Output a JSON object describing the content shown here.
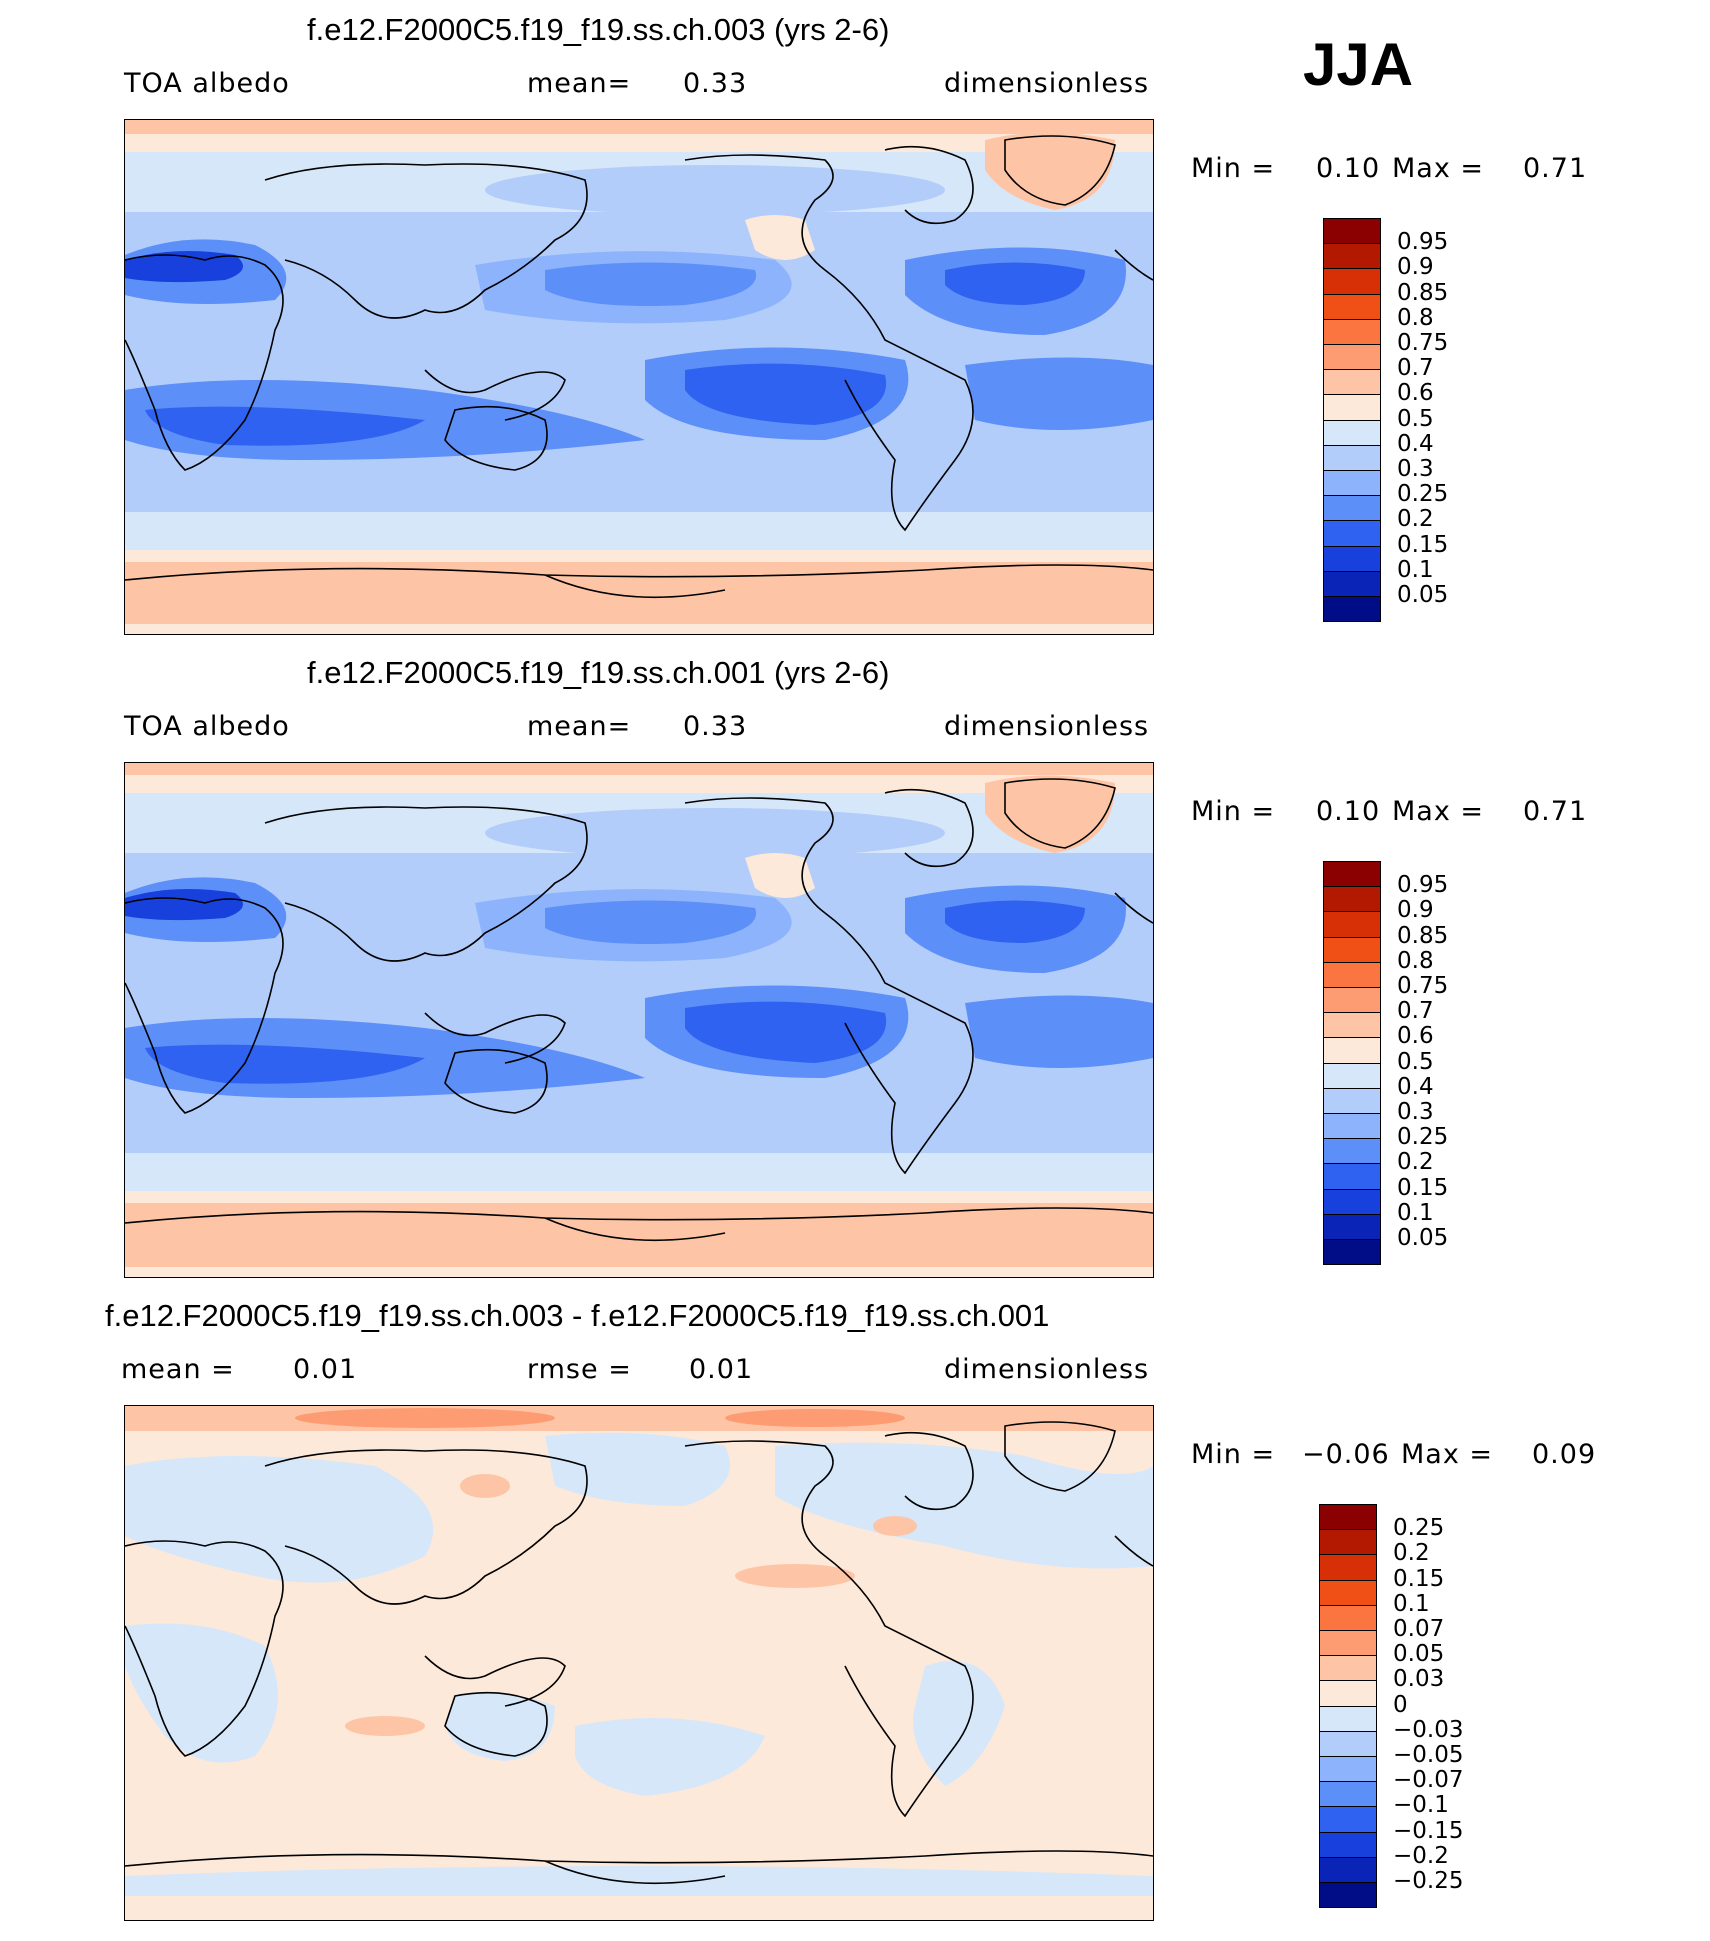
{
  "season": "JJA",
  "panels": [
    {
      "title": "f.e12.F2000C5.f19_f19.ss.ch.003 (yrs 2-6)",
      "left_label": "TOA albedo",
      "center_label": "mean=",
      "center_value": "0.33",
      "right_label": "dimensionless",
      "min_label": "Min =",
      "min_value": "0.10",
      "max_label": "Max =",
      "max_value": "0.71"
    },
    {
      "title": "f.e12.F2000C5.f19_f19.ss.ch.001 (yrs 2-6)",
      "left_label": "TOA albedo",
      "center_label": "mean=",
      "center_value": "0.33",
      "right_label": "dimensionless",
      "min_label": "Min =",
      "min_value": "0.10",
      "max_label": "Max =",
      "max_value": "0.71"
    },
    {
      "title": "f.e12.F2000C5.f19_f19.ss.ch.003 - f.e12.F2000C5.f19_f19.ss.ch.001",
      "left_label": "mean =",
      "left_value": "0.01",
      "center_label": "rmse =",
      "center_value": "0.01",
      "right_label": "dimensionless",
      "min_label": "Min =",
      "min_value": "−0.06",
      "max_label": "Max =",
      "max_value": "0.09"
    }
  ],
  "colorbars": {
    "absolute": {
      "labels": [
        "0.95",
        "0.9",
        "0.85",
        "0.8",
        "0.75",
        "0.7",
        "0.6",
        "0.5",
        "0.4",
        "0.3",
        "0.25",
        "0.2",
        "0.15",
        "0.1",
        "0.05"
      ],
      "colors": [
        "#8b0000",
        "#b31800",
        "#d83006",
        "#f04f15",
        "#fb7540",
        "#fd9c73",
        "#fdc5a6",
        "#fde9d9",
        "#d6e7fa",
        "#b3cdfb",
        "#8cb3fb",
        "#5d8ff8",
        "#2f62f0",
        "#1840dc",
        "#0a24b8",
        "#000d86"
      ]
    },
    "difference": {
      "labels": [
        "0.25",
        "0.2",
        "0.15",
        "0.1",
        "0.07",
        "0.05",
        "0.03",
        "0",
        "−0.03",
        "−0.05",
        "−0.07",
        "−0.1",
        "−0.15",
        "−0.2",
        "−0.25"
      ],
      "colors": [
        "#8b0000",
        "#b31800",
        "#d83006",
        "#f04f15",
        "#fb7540",
        "#fd9c73",
        "#fdc5a6",
        "#fde9d9",
        "#d6e7fa",
        "#b3cdfb",
        "#8cb3fb",
        "#5d8ff8",
        "#2f62f0",
        "#1840dc",
        "#0a24b8",
        "#000d86"
      ]
    }
  }
}
